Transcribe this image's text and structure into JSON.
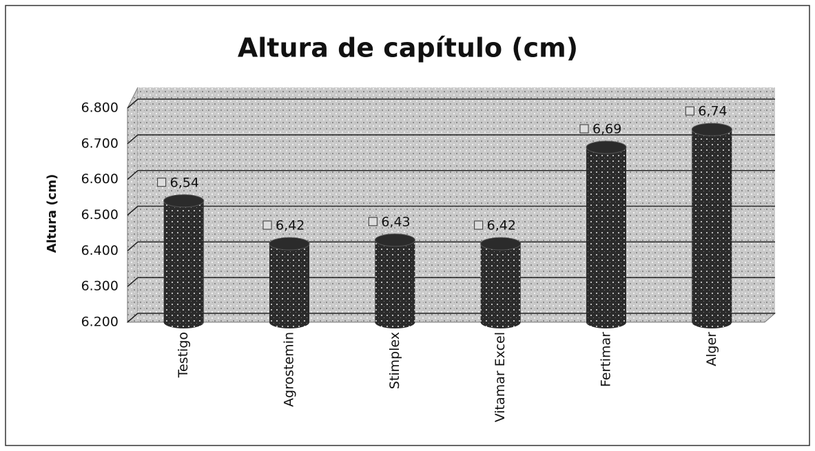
{
  "chart_data": {
    "type": "bar",
    "title": "Altura de capítulo (cm)",
    "y_label": "Altura (cm)",
    "categories": [
      "Testigo",
      "Agrostemin",
      "Stimplex",
      "Vitamar Excel",
      "Fertimar",
      "Alger"
    ],
    "values": [
      6.54,
      6.42,
      6.43,
      6.42,
      6.69,
      6.74
    ],
    "value_labels": [
      "6,54",
      "6,42",
      "6,43",
      "6,42",
      "6,69",
      "6,74"
    ],
    "color": "#2b2b2b",
    "ylim": [
      6.2,
      6.8
    ],
    "yticks": [
      {
        "value": 6.2,
        "label": "6.200"
      },
      {
        "value": 6.3,
        "label": "6.300"
      },
      {
        "value": 6.4,
        "label": "6.400"
      },
      {
        "value": 6.5,
        "label": "6.500"
      },
      {
        "value": 6.6,
        "label": "6.600"
      },
      {
        "value": 6.7,
        "label": "6.700"
      },
      {
        "value": 6.8,
        "label": "6.800"
      }
    ],
    "grid": true
  }
}
